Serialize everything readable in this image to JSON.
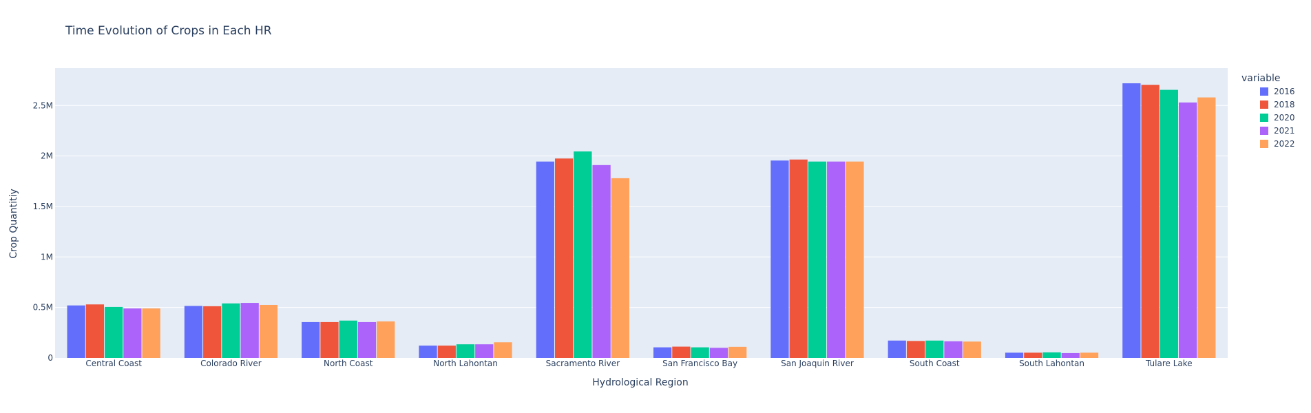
{
  "chart_data": {
    "type": "bar",
    "title": "Time Evolution of Crops in Each HR",
    "xlabel": "Hydrological Region",
    "ylabel": "Crop Quantitiy",
    "legend_title": "variable",
    "legend_position": "right",
    "grid": true,
    "ylim": [
      0,
      2870000
    ],
    "yticks": [
      {
        "value": 0,
        "label": "0"
      },
      {
        "value": 500000,
        "label": "0.5M"
      },
      {
        "value": 1000000,
        "label": "1M"
      },
      {
        "value": 1500000,
        "label": "1.5M"
      },
      {
        "value": 2000000,
        "label": "2M"
      },
      {
        "value": 2500000,
        "label": "2.5M"
      }
    ],
    "categories": [
      "Central Coast",
      "Colorado River",
      "North Coast",
      "North Lahontan",
      "Sacramento River",
      "San Francisco Bay",
      "San Joaquin River",
      "South Coast",
      "South Lahontan",
      "Tulare Lake"
    ],
    "series": [
      {
        "name": "2016",
        "color": "#636efa",
        "values": [
          520000,
          515000,
          355000,
          122000,
          1945000,
          105000,
          1955000,
          172000,
          52000,
          2720000
        ]
      },
      {
        "name": "2018",
        "color": "#ef553b",
        "values": [
          530000,
          512000,
          355000,
          122000,
          1975000,
          112000,
          1965000,
          168000,
          52000,
          2705000
        ]
      },
      {
        "name": "2020",
        "color": "#00cc96",
        "values": [
          505000,
          540000,
          370000,
          135000,
          2045000,
          105000,
          1945000,
          172000,
          55000,
          2655000
        ]
      },
      {
        "name": "2021",
        "color": "#ab63fa",
        "values": [
          490000,
          545000,
          355000,
          135000,
          1910000,
          100000,
          1945000,
          165000,
          48000,
          2530000
        ]
      },
      {
        "name": "2022",
        "color": "#ffa15a",
        "values": [
          490000,
          525000,
          362000,
          155000,
          1780000,
          110000,
          1945000,
          162000,
          52000,
          2580000
        ]
      }
    ]
  }
}
